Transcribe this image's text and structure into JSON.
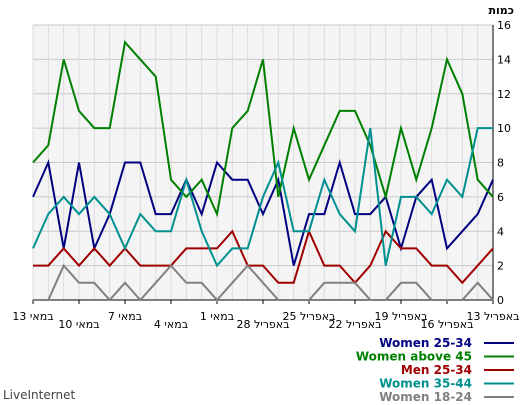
{
  "chart_data": {
    "type": "line",
    "ylabel": "כמות",
    "ylim": [
      0,
      16
    ],
    "yticks": [
      0,
      2,
      4,
      6,
      8,
      10,
      12,
      14,
      16
    ],
    "grid": true,
    "x_ticks": [
      "13 במאי",
      "10 במאי",
      "7 במאי",
      "4 במאי",
      "1 במאי",
      "28 באפריל",
      "25 באפריל",
      "22 באפריל",
      "19 באפריל",
      "16 באפריל",
      "13 באפריל"
    ],
    "x_axis_direction": "right-to-left",
    "legend_position": "bottom-right",
    "watermark": "LiveInternet",
    "series": [
      {
        "name": "Women 25-34",
        "color": "#000080",
        "values": [
          6,
          8,
          3,
          8,
          3,
          5,
          8,
          8,
          5,
          5,
          7,
          5,
          8,
          7,
          7,
          5,
          7,
          2,
          5,
          5,
          8,
          5,
          5,
          6,
          3,
          6,
          7,
          3,
          4,
          5,
          7
        ]
      },
      {
        "name": "Women above 45",
        "color": "#008000",
        "values": [
          8,
          9,
          14,
          11,
          10,
          10,
          15,
          14,
          13,
          7,
          6,
          7,
          5,
          10,
          11,
          14,
          6,
          10,
          7,
          9,
          11,
          11,
          9,
          6,
          10,
          7,
          10,
          14,
          12,
          7,
          6
        ]
      },
      {
        "name": "Men 25-34",
        "color": "#a00000",
        "values": [
          2,
          2,
          3,
          2,
          3,
          2,
          3,
          2,
          2,
          2,
          3,
          3,
          3,
          4,
          2,
          2,
          1,
          1,
          4,
          2,
          2,
          1,
          2,
          4,
          3,
          3,
          2,
          2,
          1,
          2,
          3
        ]
      },
      {
        "name": "Women 35-44",
        "color": "#009090",
        "values": [
          3,
          5,
          6,
          5,
          6,
          5,
          3,
          5,
          4,
          4,
          7,
          4,
          2,
          3,
          3,
          6,
          8,
          4,
          4,
          7,
          5,
          4,
          10,
          2,
          6,
          6,
          5,
          7,
          6,
          10,
          10
        ]
      },
      {
        "name": "Women 18-24",
        "color": "#808080",
        "values": [
          0,
          0,
          2,
          1,
          1,
          0,
          1,
          0,
          1,
          2,
          1,
          1,
          0,
          1,
          2,
          1,
          0,
          0,
          0,
          1,
          1,
          1,
          0,
          0,
          1,
          1,
          0,
          0,
          0,
          1,
          0
        ]
      }
    ]
  }
}
